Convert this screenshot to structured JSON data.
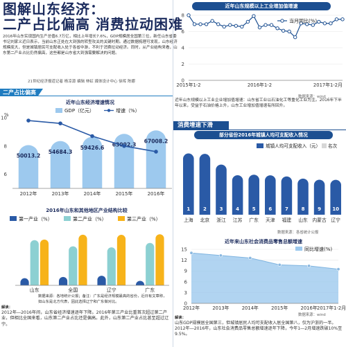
{
  "header": {
    "title": "图解山东经济：",
    "subtitle": "二产占比偏高 消费拉动困难",
    "intro": "2016年山东实现国内生产总值6.7万亿，相比上年增长7.6%，GDP规模居全国第三位，新任山东省委书记刘家义近日表示，当前山东正处在大到强的转型攻关的关键时期。通过数据梳理可发现，山东经济规模庞大，但是城镇居民可支配收入处于各省中游，不利于消费拉动经济。同时，从产业结构来看，山东第二产业占比仍然偏高，这些都是山东省大到强需要解决的问题。",
    "credit": "21世纪经济报道记者 杨凉源  编辑 林虹  媒体设计中心 徐晖 陈娜"
  },
  "section_labels": {
    "industry": "二产占比偏高",
    "consumption": "消费增速下滑"
  },
  "colors": {
    "navy": "#1a2a5c",
    "blue": "#1f7cc0",
    "line_blue": "#1c4f91",
    "bar_blue": "#2a5aa6",
    "teal": "#8cd0d2",
    "yellow": "#f7b31a",
    "light_blue": "#9dc9ee",
    "gray_bar": "#d7d7d7"
  },
  "notes": {
    "industry_growth": "近年山东规模以上工业企业增加值增速：山东省工业以石油化工等重化工业为主。2016年下半年以来，受益于石油价格上升，山东工业增加值增速有所回升。",
    "industry_growth_source": "数据来源：wind",
    "gdp_source": "数据来源：各地统计公报",
    "structure_note": "数据来源：各地统计公报；备注：广东是经济规模最高的省份，近日有文章称，如山东是北方代表，因此选择辽宁和广东做对比。",
    "income_source": "数据来源：各省统计公报",
    "retail_source": "数据来源：wind",
    "left_explain_label": "解读：",
    "left_explain": "2012年―2016年间，山东省经济增速逐年下降。2016年第三产业比重首次超过第二产业，但相比全国来看，山东第二产业占比还是偏高。此外，山东第二产业占比甚至超过辽宁。",
    "right_explain_label": "解读：",
    "right_explain": "山东GDP规模居全国第三，但城镇居民人均可支配收入居全国第八，仅为沪浙的一半。2012年―2016年，山东社会消费品零售总额增速逐年下降，今年1―2月增速跌破10%至9.5%。"
  },
  "chart_data": [
    {
      "type": "line",
      "title": "近年山东规模以上工业增加值增速",
      "legend_label": "当月同比(%)",
      "legend_position": "top-right",
      "ylim": [
        0,
        8
      ],
      "yticks": [
        "0",
        "2",
        "4",
        "6",
        "8"
      ],
      "xticks": [
        "2015年1-2",
        "2016年1-2",
        "2017年1-2月"
      ],
      "values": [
        8.0,
        6.9,
        6.9,
        6.9,
        7.3,
        6.9,
        6.6,
        6.8,
        6.7,
        6.6,
        7.2,
        7.9,
        6.5,
        6.8,
        6.8,
        6.4,
        6.1,
        6.0,
        5.3,
        7.0,
        6.9,
        6.8,
        7.2,
        7.0,
        7.0,
        7.5,
        7.5
      ]
    },
    {
      "type": "bar",
      "title": "近年山东经济增速情况",
      "series": [
        {
          "name": "GDP（亿元）",
          "values": [
            50013.2,
            54684.3,
            59426.6,
            63002.3,
            67008.2
          ]
        },
        {
          "name": "增速（%）",
          "values": [
            9.8,
            9.6,
            8.7,
            8.0,
            7.6
          ]
        }
      ],
      "value_labels": [
        "50013.2",
        "54684.3",
        "59426.6",
        "63002.3",
        "67008.2"
      ],
      "categories": [
        "2012年",
        "2013年",
        "2014年",
        "2015年",
        "2016年"
      ],
      "ylabel": "%",
      "yticks": [
        "6",
        "8",
        "10"
      ],
      "ylim": [
        5,
        10
      ]
    },
    {
      "type": "bar",
      "title": "2016年山东和其他地区产业结构比较",
      "series": [
        {
          "name": "第一产业（%）",
          "values": [
            7.3,
            8.6,
            9.8,
            4.6
          ]
        },
        {
          "name": "第二产业（%）",
          "values": [
            46.1,
            39.8,
            38.7,
            43.2
          ]
        },
        {
          "name": "第三产业（%）",
          "values": [
            46.7,
            51.6,
            51.5,
            52.1
          ]
        }
      ],
      "categories": [
        "山东",
        "全国",
        "辽宁",
        "广东"
      ],
      "ylim": [
        0,
        60
      ]
    },
    {
      "type": "bar",
      "title": "部分省份2016年城镇人均可支配收入情况",
      "series": [
        {
          "name": "城镇人均可支配收入（元）",
          "values": [
            57692,
            57275,
            47237,
            37173,
            37684,
            37110,
            36014,
            34012,
            32975,
            32876
          ]
        },
        {
          "name": "名次",
          "values": [
            1,
            2,
            3,
            4,
            5,
            6,
            7,
            8,
            9,
            10
          ]
        }
      ],
      "rank_labels": [
        "1",
        "2",
        "3",
        "4",
        "5",
        "6",
        "7",
        "8",
        "9",
        "10"
      ],
      "categories": [
        "上海",
        "北京",
        "浙江",
        "江苏",
        "广东",
        "天津",
        "福建",
        "山东",
        "内蒙古",
        "辽宁"
      ],
      "ylim": [
        0,
        60000
      ]
    },
    {
      "type": "area",
      "title": "近年来山东社会消费品零售总额增速",
      "legend_label": "同比增速(%)",
      "legend_position": "top-right",
      "ylim": [
        0,
        15
      ],
      "yticks": [
        "0",
        "3",
        "6",
        "9",
        "12",
        "15"
      ],
      "xticks": [
        "2012年",
        "2013年",
        "2014年",
        "2015年",
        "2016年",
        "2017年1-2月"
      ],
      "values": [
        14.0,
        13.3,
        12.6,
        10.7,
        10.4,
        9.5
      ]
    }
  ]
}
